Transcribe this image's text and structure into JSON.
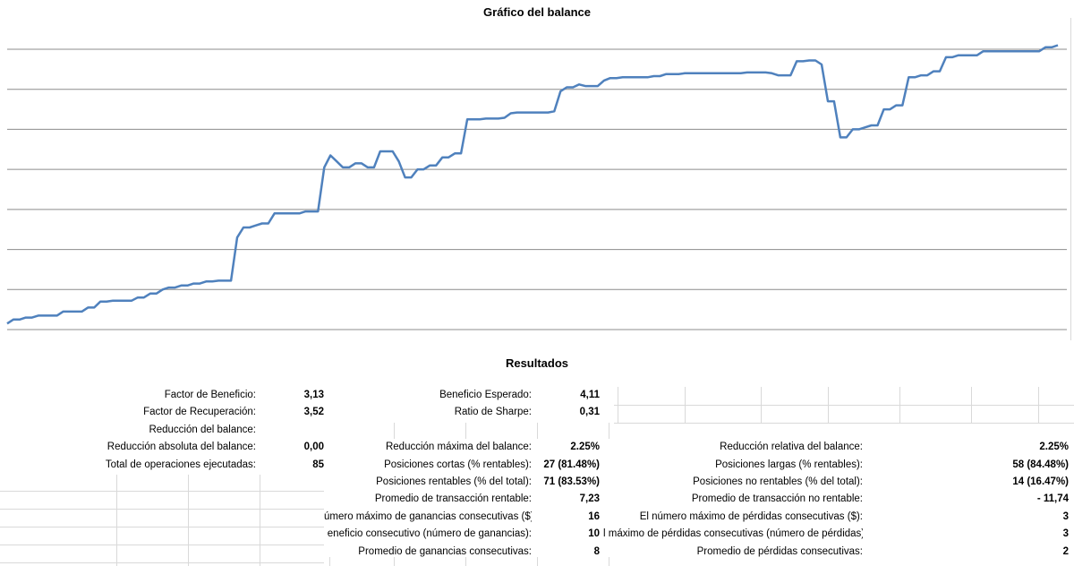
{
  "chart": {
    "title": "Gráfico del balance"
  },
  "chart_data": {
    "type": "line",
    "title": "Gráfico del balance",
    "xlabel": "",
    "ylabel": "",
    "grid": true,
    "legend": "none",
    "ylim": [
      0,
      7
    ],
    "line_color": "#4f81bd",
    "series": [
      {
        "values": [
          0.15,
          0.25,
          0.25,
          0.3,
          0.3,
          0.35,
          0.35,
          0.35,
          0.35,
          0.45,
          0.45,
          0.45,
          0.45,
          0.55,
          0.55,
          0.7,
          0.7,
          0.72,
          0.72,
          0.72,
          0.72,
          0.8,
          0.8,
          0.9,
          0.9,
          1.0,
          1.05,
          1.05,
          1.1,
          1.1,
          1.15,
          1.15,
          1.2,
          1.2,
          1.22,
          1.22,
          1.22,
          2.3,
          2.55,
          2.55,
          2.6,
          2.65,
          2.65,
          2.9,
          2.9,
          2.9,
          2.9,
          2.9,
          2.95,
          2.95,
          2.95,
          4.05,
          4.35,
          4.2,
          4.05,
          4.05,
          4.15,
          4.15,
          4.05,
          4.05,
          4.45,
          4.45,
          4.45,
          4.2,
          3.8,
          3.8,
          4.0,
          4.0,
          4.1,
          4.1,
          4.3,
          4.3,
          4.4,
          4.4,
          5.25,
          5.25,
          5.25,
          5.27,
          5.27,
          5.27,
          5.29,
          5.4,
          5.42,
          5.42,
          5.42,
          5.42,
          5.42,
          5.42,
          5.45,
          5.95,
          6.05,
          6.05,
          6.12,
          6.08,
          6.08,
          6.08,
          6.22,
          6.28,
          6.28,
          6.3,
          6.3,
          6.3,
          6.3,
          6.3,
          6.33,
          6.33,
          6.38,
          6.38,
          6.38,
          6.4,
          6.4,
          6.4,
          6.4,
          6.4,
          6.4,
          6.4,
          6.4,
          6.4,
          6.4,
          6.42,
          6.42,
          6.42,
          6.42,
          6.4,
          6.35,
          6.35,
          6.35,
          6.7,
          6.7,
          6.72,
          6.72,
          6.62,
          5.7,
          5.7,
          4.8,
          4.8,
          5.0,
          5.0,
          5.05,
          5.1,
          5.1,
          5.5,
          5.5,
          5.6,
          5.6,
          6.3,
          6.3,
          6.35,
          6.35,
          6.45,
          6.45,
          6.8,
          6.8,
          6.85,
          6.85,
          6.85,
          6.85,
          6.95,
          6.95,
          6.95,
          6.95,
          6.95,
          6.95,
          6.95,
          6.95,
          6.95,
          6.95,
          7.05,
          7.05,
          7.1
        ]
      }
    ]
  },
  "results": {
    "title": "Resultados",
    "rows": [
      {
        "c1l": "Factor de Beneficio:",
        "c1v": "3,13",
        "c2l": "Beneficio Esperado:",
        "c2v": "4,11",
        "c3l": "",
        "c3v": ""
      },
      {
        "c1l": "Factor de Recuperación:",
        "c1v": "3,52",
        "c2l": "Ratio de Sharpe:",
        "c2v": "0,31",
        "c3l": "",
        "c3v": ""
      },
      {
        "c1l": "Reducción del balance:",
        "c1v": "",
        "c2l": "",
        "c2v": "",
        "c3l": "",
        "c3v": ""
      },
      {
        "c1l": "Reducción absoluta del balance:",
        "c1v": "0,00",
        "c2l": "Reducción máxima del balance:",
        "c2v": "2.25%",
        "c3l": "Reducción relativa del balance:",
        "c3v": "2.25%"
      },
      {
        "c1l": "Total de operaciones ejecutadas:",
        "c1v": "85",
        "c2l": "Posiciones cortas (% rentables):",
        "c2v": "27 (81.48%)",
        "c3l": "Posiciones largas (% rentables):",
        "c3v": "58 (84.48%)"
      },
      {
        "c1l": "",
        "c1v": "",
        "c2l": "Posiciones rentables (% del total):",
        "c2v": "71 (83.53%)",
        "c3l": "Posiciones no rentables (% del total):",
        "c3v": "14 (16.47%)"
      },
      {
        "c1l": "",
        "c1v": "",
        "c2l": "Promedio de transacción rentable:",
        "c2v": "7,23",
        "c3l": "Promedio de transacción no rentable:",
        "c3v": "- 11,74"
      },
      {
        "c1l": "",
        "c1v": "",
        "c2l": "úmero máximo de ganancias consecutivas ($):",
        "c2v": "16",
        "c3l": "El número máximo de pérdidas consecutivas ($):",
        "c3v": "3"
      },
      {
        "c1l": "",
        "c1v": "",
        "c2l": "eneficio consecutivo (número de ganancias):",
        "c2v": "10",
        "c3l": "l máximo de pérdidas consecutivas (número de pérdidas):",
        "c3v": "3"
      },
      {
        "c1l": "",
        "c1v": "",
        "c2l": "Promedio de ganancias consecutivas:",
        "c2v": "8",
        "c3l": "Promedio de pérdidas consecutivas:",
        "c3v": "2"
      }
    ]
  }
}
